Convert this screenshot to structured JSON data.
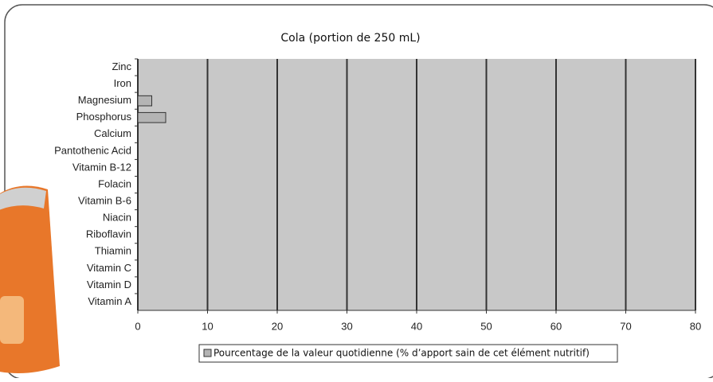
{
  "chart_data": {
    "type": "hbar",
    "title": "Cola (portion de 250 mL)",
    "categories": [
      "Zinc",
      "Iron",
      "Magnesium",
      "Phosphorus",
      "Calcium",
      "Pantothenic Acid",
      "Vitamin B-12",
      "Folacin",
      "Vitamin B-6",
      "Niacin",
      "Riboflavin",
      "Thiamin",
      "Vitamin C",
      "Vitamin D",
      "Vitamin A"
    ],
    "series": [
      {
        "name": "Pourcentage de la valeur quotidienne (% d’apport sain de cet élément nutritif)",
        "color": "#b4b4b4",
        "values": [
          0,
          0,
          2,
          4,
          0,
          0,
          0,
          0,
          0,
          0,
          0,
          0,
          0,
          0,
          0
        ]
      }
    ],
    "xlim": [
      0,
      80
    ],
    "xticks": [
      0,
      10,
      20,
      30,
      40,
      50,
      60,
      70,
      80
    ],
    "grid": true
  }
}
